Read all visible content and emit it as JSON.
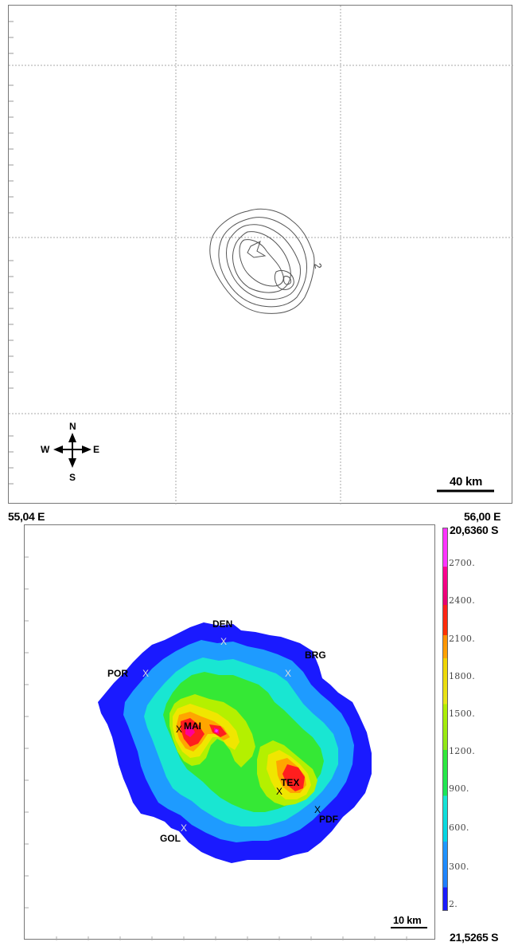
{
  "top_map": {
    "scale_bar_label": "40 km",
    "contour_label": "2",
    "compass": {
      "north": "N",
      "south": "S",
      "east": "E",
      "west": "W"
    }
  },
  "coordinates": {
    "west_longitude": "55,04 E",
    "east_longitude": "56,00 E",
    "north_latitude": "20,6360 S",
    "south_latitude": "21,5265 S"
  },
  "bottom_map": {
    "scale_bar_label": "10 km",
    "places": [
      {
        "code": "DEN",
        "marker": "X"
      },
      {
        "code": "BRG",
        "marker": "X"
      },
      {
        "code": "POR",
        "marker": "X"
      },
      {
        "code": "MAI",
        "marker": "X"
      },
      {
        "code": "TEX",
        "marker": "X"
      },
      {
        "code": "PDF",
        "marker": "X"
      },
      {
        "code": "GOL",
        "marker": "X"
      }
    ],
    "legend": {
      "labels": [
        "2700.",
        "2400.",
        "2100.",
        "1800.",
        "1500.",
        "1200.",
        "900.",
        "600.",
        "300.",
        "2."
      ]
    },
    "colors": {
      "band_2": "#1a1aff",
      "band_300": "#1e9bff",
      "band_600": "#19e6d2",
      "band_900": "#35e835",
      "band_1200": "#b4f000",
      "band_1500": "#f0e600",
      "band_1800": "#ffa500",
      "band_2100": "#ff1e1e",
      "band_2400": "#ff0096",
      "band_2700": "#ff33ff"
    }
  }
}
